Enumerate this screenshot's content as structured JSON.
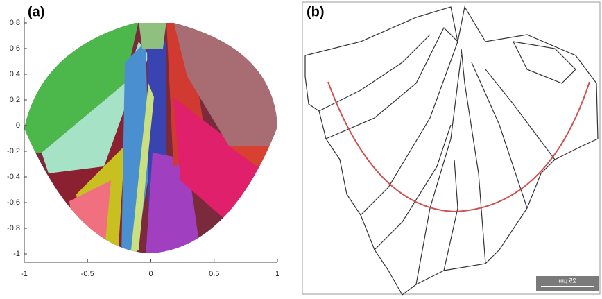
{
  "panels": [
    {
      "label": "(a)",
      "xlim": [
        -1,
        1
      ],
      "ylim": [
        -1,
        0.8
      ],
      "xticks": [
        -1,
        -0.5,
        0,
        0.5,
        1
      ],
      "yticks": [
        0.8,
        0.6,
        0.4,
        0.2,
        0,
        -0.2,
        -0.4,
        -0.6,
        -0.8,
        -1
      ]
    },
    {
      "label": "(b)",
      "scale_bar": "25 µm"
    }
  ]
}
